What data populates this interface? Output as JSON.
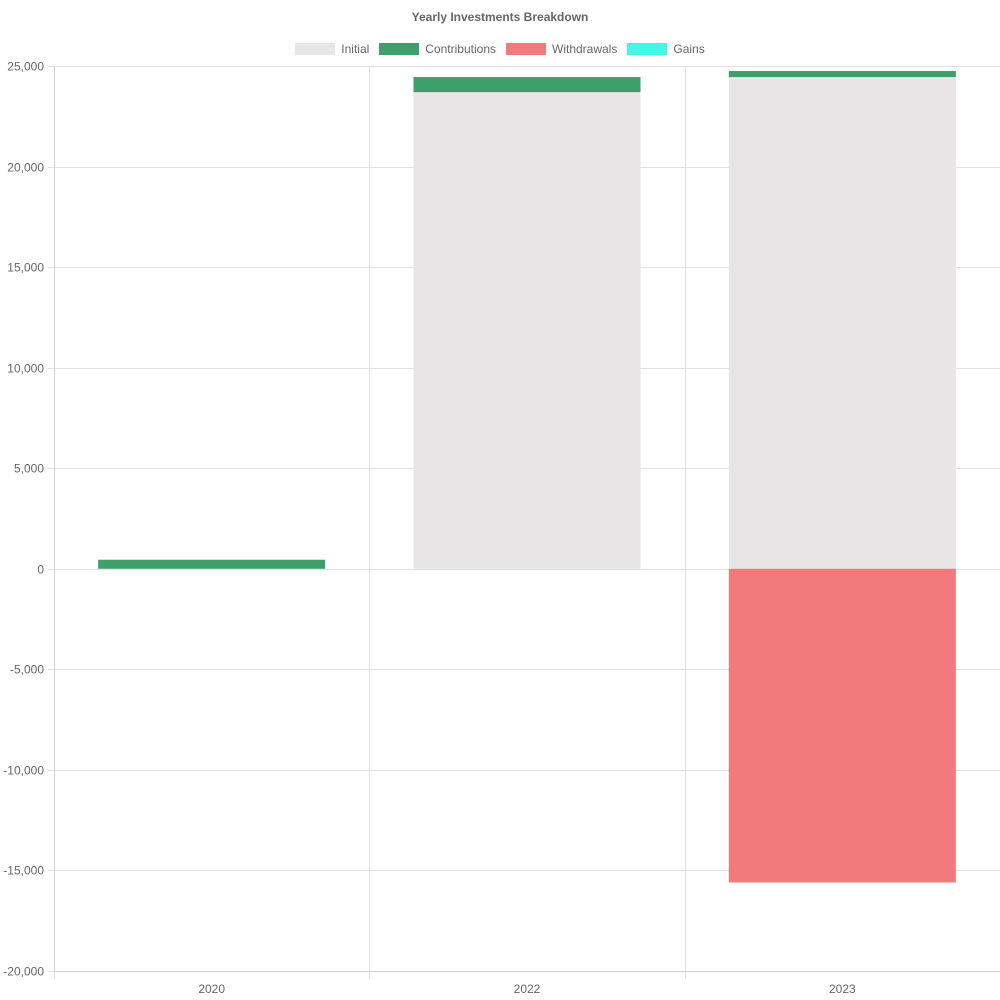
{
  "chart_data": {
    "type": "bar",
    "stacked": true,
    "title": "Yearly Investments Breakdown",
    "categories": [
      "2020",
      "2022",
      "2023"
    ],
    "series": [
      {
        "name": "Initial",
        "color": "#e7e5e6",
        "values": [
          0,
          23700,
          24450
        ]
      },
      {
        "name": "Contributions",
        "color": "#3d9f6a",
        "values": [
          450,
          750,
          300
        ]
      },
      {
        "name": "Withdrawals",
        "color": "#f27a7c",
        "values": [
          0,
          0,
          -15600
        ]
      },
      {
        "name": "Gains",
        "color": "#43f7e6",
        "values": [
          0,
          0,
          0
        ]
      }
    ],
    "ylim": [
      -20000,
      25000
    ],
    "yticks": [
      25000,
      20000,
      15000,
      10000,
      5000,
      0,
      -5000,
      -10000,
      -15000,
      -20000
    ],
    "ytick_labels": [
      "25,000",
      "20,000",
      "15,000",
      "10,000",
      "5,000",
      "0",
      "-5,000",
      "-10,000",
      "-15,000",
      "-20,000"
    ],
    "grid": true,
    "legend_position": "top"
  }
}
